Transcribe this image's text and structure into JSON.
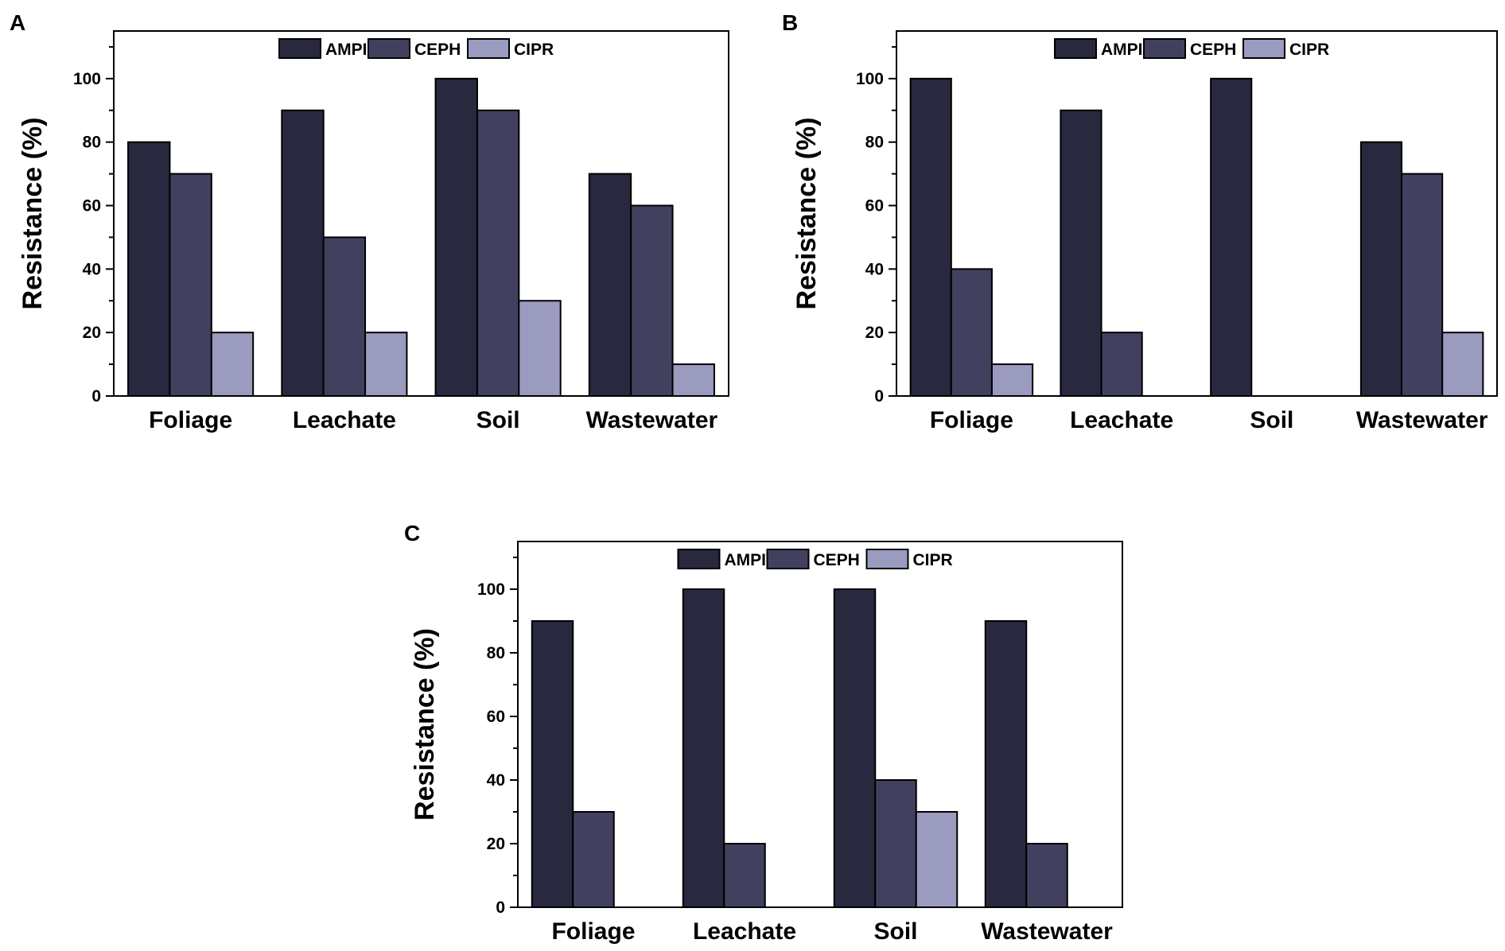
{
  "colors": {
    "series": [
      "#28283f",
      "#41415f",
      "#9b9bc0"
    ],
    "axis": "#000000",
    "background": "#ffffff"
  },
  "chart_data": [
    {
      "panel": "A",
      "type": "bar",
      "categories": [
        "Foliage",
        "Leachate",
        "Soil",
        "Wastewater"
      ],
      "series": [
        {
          "name": "AMPI",
          "values": [
            80,
            90,
            100,
            70
          ]
        },
        {
          "name": "CEPH",
          "values": [
            70,
            50,
            90,
            60
          ]
        },
        {
          "name": "CIPR",
          "values": [
            20,
            20,
            30,
            10
          ]
        }
      ],
      "ylabel": "Resistance (%)",
      "xlabel": "",
      "ylim": [
        0,
        115
      ],
      "yticks": [
        0,
        20,
        40,
        60,
        80,
        100
      ],
      "legend": "top-center"
    },
    {
      "panel": "B",
      "type": "bar",
      "categories": [
        "Foliage",
        "Leachate",
        "Soil",
        "Wastewater"
      ],
      "series": [
        {
          "name": "AMPI",
          "values": [
            100,
            90,
            100,
            80
          ]
        },
        {
          "name": "CEPH",
          "values": [
            40,
            20,
            0,
            70
          ]
        },
        {
          "name": "CIPR",
          "values": [
            10,
            0,
            0,
            20
          ]
        }
      ],
      "ylabel": "Resistance (%)",
      "xlabel": "",
      "ylim": [
        0,
        115
      ],
      "yticks": [
        0,
        20,
        40,
        60,
        80,
        100
      ],
      "legend": "top-center"
    },
    {
      "panel": "C",
      "type": "bar",
      "categories": [
        "Foliage",
        "Leachate",
        "Soil",
        "Wastewater"
      ],
      "series": [
        {
          "name": "AMPI",
          "values": [
            90,
            100,
            100,
            90
          ]
        },
        {
          "name": "CEPH",
          "values": [
            30,
            20,
            40,
            20
          ]
        },
        {
          "name": "CIPR",
          "values": [
            0,
            0,
            30,
            0
          ]
        }
      ],
      "ylabel": "Resistance (%)",
      "xlabel": "",
      "ylim": [
        0,
        115
      ],
      "yticks": [
        0,
        20,
        40,
        60,
        80,
        100
      ],
      "legend": "top-center"
    }
  ]
}
